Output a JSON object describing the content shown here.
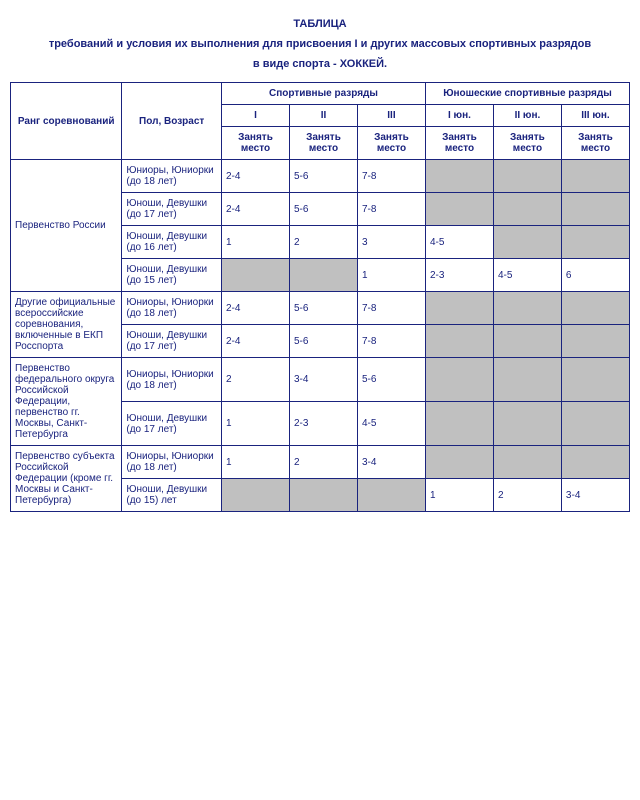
{
  "heading_line1": "ТАБЛИЦА",
  "heading_line2": "требований и условия их выполнения для присвоения I и других массовых спортивных разрядов",
  "heading_line3": "в виде спорта - ХОККЕЙ.",
  "headers": {
    "rank": "Ранг соревнований",
    "age": "Пол, Возраст",
    "sport_group": "Спортивные разряды",
    "youth_group": "Юношеские спортивные разряды",
    "I": "I",
    "II": "II",
    "III": "III",
    "Iy": "I юн.",
    "IIy": "II юн.",
    "IIIy": "III юн.",
    "place": "Занять место"
  },
  "ranks": {
    "r1": "Первенство России",
    "r2": "Другие официальные всероссийские соревнования, включенные в ЕКП Росспорта",
    "r3": "Первенство федерального округа Российской Федерации, первенство гг. Москвы, Санкт-Петербурга",
    "r4": "Первенство субъекта Российской Федерации (кроме гг. Москвы и Санкт-Петербурга)"
  },
  "ages": {
    "a18": "Юниоры, Юниорки (до 18 лет)",
    "a17": "Юноши, Девушки (до 17 лет)",
    "a16": "Юноши, Девушки (до 16 лет)",
    "a15": "Юноши, Девушки (до 15 лет)",
    "a15p": "Юноши, Девушки (до 15) лет"
  },
  "rows": [
    {
      "rank": "r1",
      "rowspan": 4,
      "age": "a18",
      "v": [
        "2-4",
        "5-6",
        "7-8",
        null,
        null,
        null
      ]
    },
    {
      "age": "a17",
      "v": [
        "2-4",
        "5-6",
        "7-8",
        null,
        null,
        null
      ]
    },
    {
      "age": "a16",
      "v": [
        "1",
        "2",
        "3",
        "4-5",
        null,
        null
      ]
    },
    {
      "age": "a15",
      "v": [
        null,
        null,
        "1",
        "2-3",
        "4-5",
        "6"
      ]
    },
    {
      "rank": "r2",
      "rowspan": 2,
      "age": "a18",
      "v": [
        "2-4",
        "5-6",
        "7-8",
        null,
        null,
        null
      ]
    },
    {
      "age": "a17",
      "v": [
        "2-4",
        "5-6",
        "7-8",
        null,
        null,
        null
      ]
    },
    {
      "rank": "r3",
      "rowspan": 2,
      "age": "a18",
      "v": [
        "2",
        "3-4",
        "5-6",
        null,
        null,
        null
      ]
    },
    {
      "age": "a17",
      "v": [
        "1",
        "2-3",
        "4-5",
        null,
        null,
        null
      ]
    },
    {
      "rank": "r4",
      "rowspan": 2,
      "age": "a18",
      "v": [
        "1",
        "2",
        "3-4",
        null,
        null,
        null
      ]
    },
    {
      "age": "a15p",
      "v": [
        null,
        null,
        null,
        "1",
        "2",
        "3-4"
      ]
    }
  ],
  "colors": {
    "text": "#1a237e",
    "border": "#1a237e",
    "shaded": "#c0c0c0",
    "background": "#ffffff"
  }
}
